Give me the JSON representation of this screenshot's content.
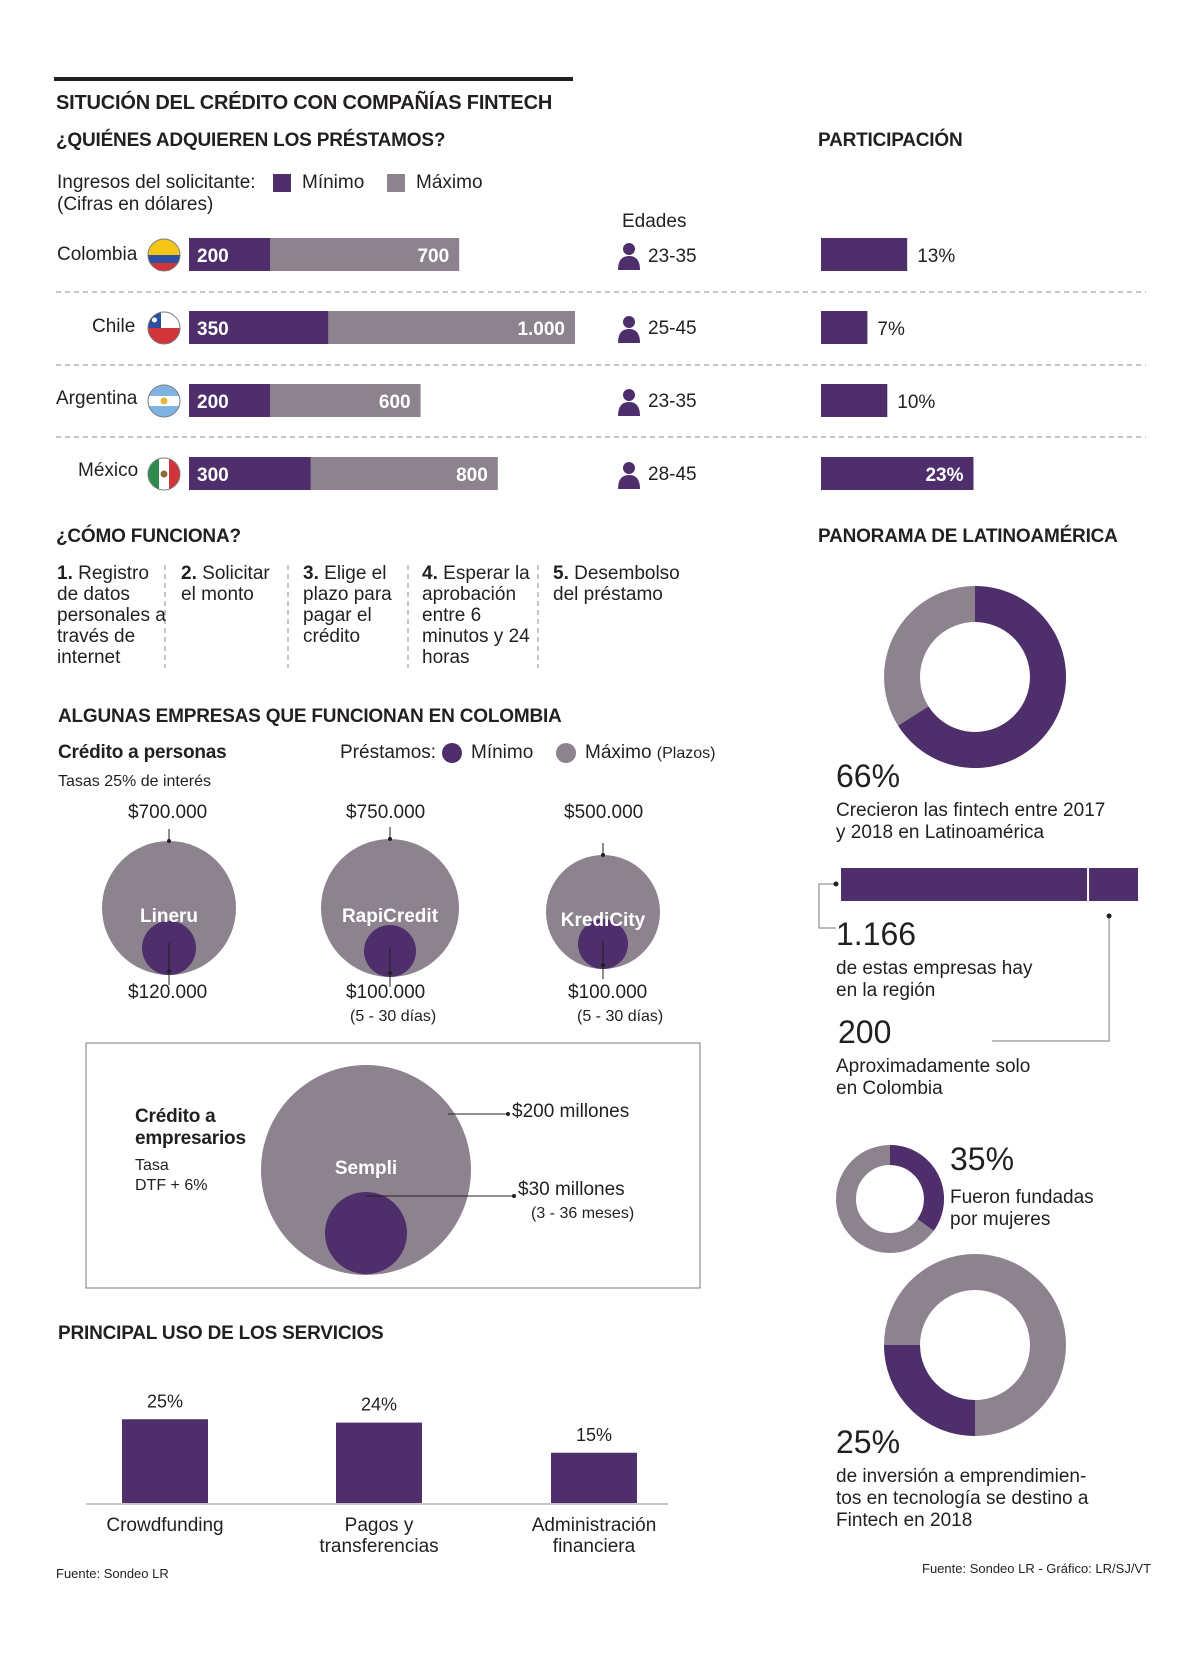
{
  "title": "SITUCIÓN DEL CRÉDITO CON COMPAÑÍAS FINTECH",
  "loans": {
    "heading": "¿QUIÉNES ADQUIEREN LOS PRÉSTAMOS?",
    "income_label": "Ingresos del solicitante:",
    "income_note": "(Cifras en dólares)",
    "legend_min": "Mínimo",
    "legend_max": "Máximo",
    "ages_heading": "Edades",
    "participation_heading": "PARTICIPACIÓN",
    "countries": [
      {
        "name": "Colombia",
        "min_label": "200",
        "max_label": "700",
        "age": "23-35",
        "share_label": "13%"
      },
      {
        "name": "Chile",
        "min_label": "350",
        "max_label": "1.000",
        "age": "25-45",
        "share_label": "7%"
      },
      {
        "name": "Argentina",
        "min_label": "200",
        "max_label": "600",
        "age": "23-35",
        "share_label": "10%"
      },
      {
        "name": "México",
        "min_label": "300",
        "max_label": "800",
        "age": "28-45",
        "share_label": "23%"
      }
    ]
  },
  "how": {
    "heading": "¿CÓMO FUNCIONA?",
    "steps": [
      {
        "num": "1.",
        "text": "Registro de datos personales a través de internet"
      },
      {
        "num": "2.",
        "text": "Solicitar el monto"
      },
      {
        "num": "3.",
        "text": "Elige el plazo para pagar el crédito"
      },
      {
        "num": "4.",
        "text": "Esperar la aprobación entre 6 minutos y 24 horas"
      },
      {
        "num": "5.",
        "text": "Desembolso del préstamo"
      }
    ]
  },
  "companies": {
    "heading": "ALGUNAS EMPRESAS QUE FUNCIONAN EN COLOMBIA",
    "personal_title": "Crédito a personas",
    "personal_rate": "Tasas 25% de interés",
    "legend_prefix": "Préstamos:",
    "legend_min": "Mínimo",
    "legend_max": "Máximo",
    "legend_terms": "(Plazos)",
    "items": [
      {
        "name": "Lineru",
        "max_label": "$700.000",
        "min_label": "$120.000",
        "term": ""
      },
      {
        "name": "RapiCredit",
        "max_label": "$750.000",
        "min_label": "$100.000",
        "term": "(5 - 30 días)"
      },
      {
        "name": "KrediCity",
        "max_label": "$500.000",
        "min_label": "$100.000",
        "term": "(5 - 30 días)"
      }
    ],
    "business": {
      "title_line1": "Crédito a",
      "title_line2": "empresarios",
      "rate_line1": "Tasa",
      "rate_line2": "DTF + 6%",
      "name": "Sempli",
      "max_label": "$200 millones",
      "min_label": "$30 millones",
      "term": "(3 - 36 meses)"
    }
  },
  "uses": {
    "heading": "PRINCIPAL USO DE LOS SERVICIOS",
    "source": "Fuente: Sondeo LR"
  },
  "panorama": {
    "heading": "PANORAMA DE LATINOAMÉRICA",
    "growth_value": "66%",
    "growth_text_1": "Crecieron las fintech entre 2017",
    "growth_text_2": "y 2018 en Latinoamérica",
    "total_value": "1.166",
    "total_text_1": "de estas empresas hay",
    "total_text_2": "en la región",
    "colombia_value": "200",
    "colombia_text_1": "Aproximadamente solo",
    "colombia_text_2": "en Colombia",
    "women_value": "35%",
    "women_text_1": "Fueron fundadas",
    "women_text_2": "por mujeres",
    "invest_value": "25%",
    "invest_text_1": "de inversión a emprendimien-",
    "invest_text_2": "tos en tecnología se destino a",
    "invest_text_3": "Fintech en 2018",
    "source": "Fuente: Sondeo LR - Gráfico: LR/SJ/VT"
  },
  "colors": {
    "purple": "#4e2e6b",
    "gray": "#8d838f",
    "text": "#231f20"
  },
  "chart_data": [
    {
      "type": "bar",
      "orientation": "horizontal",
      "title": "¿QUIÉNES ADQUIEREN LOS PRÉSTAMOS?",
      "subtitle": "Ingresos del solicitante (Cifras en dólares)",
      "categories": [
        "Colombia",
        "Chile",
        "Argentina",
        "México"
      ],
      "series": [
        {
          "name": "Mínimo",
          "values": [
            200,
            350,
            200,
            300
          ]
        },
        {
          "name": "Máximo",
          "values": [
            700,
            1000,
            600,
            800
          ]
        }
      ],
      "xlim": [
        0,
        1000
      ],
      "legend": "top-left",
      "grid": false
    },
    {
      "type": "bar",
      "orientation": "horizontal",
      "title": "PARTICIPACIÓN",
      "categories": [
        "Colombia",
        "Chile",
        "Argentina",
        "México"
      ],
      "values": [
        13,
        7,
        10,
        23
      ],
      "unit": "%"
    },
    {
      "type": "bar",
      "title": "PRINCIPAL USO DE LOS SERVICIOS",
      "categories": [
        "Crowdfunding",
        "Pagos y transferencias",
        "Administración financiera"
      ],
      "values": [
        25,
        24,
        15
      ],
      "labels": [
        "25%",
        "24%",
        "15%"
      ],
      "unit": "%",
      "ylim": [
        0,
        25
      ]
    },
    {
      "type": "scatter",
      "title": "Crédito a personas",
      "series": [
        {
          "name": "Máximo",
          "values": [
            700000,
            750000,
            500000
          ]
        },
        {
          "name": "Mínimo",
          "values": [
            120000,
            100000,
            100000
          ]
        }
      ],
      "categories": [
        "Lineru",
        "RapiCredit",
        "KrediCity"
      ]
    },
    {
      "type": "pie",
      "title": "PANORAMA DE LATINOAMÉRICA",
      "slices": [
        {
          "label": "66%",
          "value": 66
        },
        {
          "label": "",
          "value": 34
        }
      ]
    },
    {
      "type": "pie",
      "slices": [
        {
          "label": "35%",
          "value": 35
        },
        {
          "label": "",
          "value": 65
        }
      ]
    },
    {
      "type": "pie",
      "slices": [
        {
          "label": "25%",
          "value": 25
        },
        {
          "label": "",
          "value": 75
        }
      ]
    },
    {
      "type": "bar",
      "orientation": "horizontal",
      "stacked": true,
      "categories": [
        "Latinoamérica"
      ],
      "series": [
        {
          "name": "1.166",
          "values": [
            966
          ]
        },
        {
          "name": "200",
          "values": [
            200
          ]
        }
      ]
    }
  ]
}
